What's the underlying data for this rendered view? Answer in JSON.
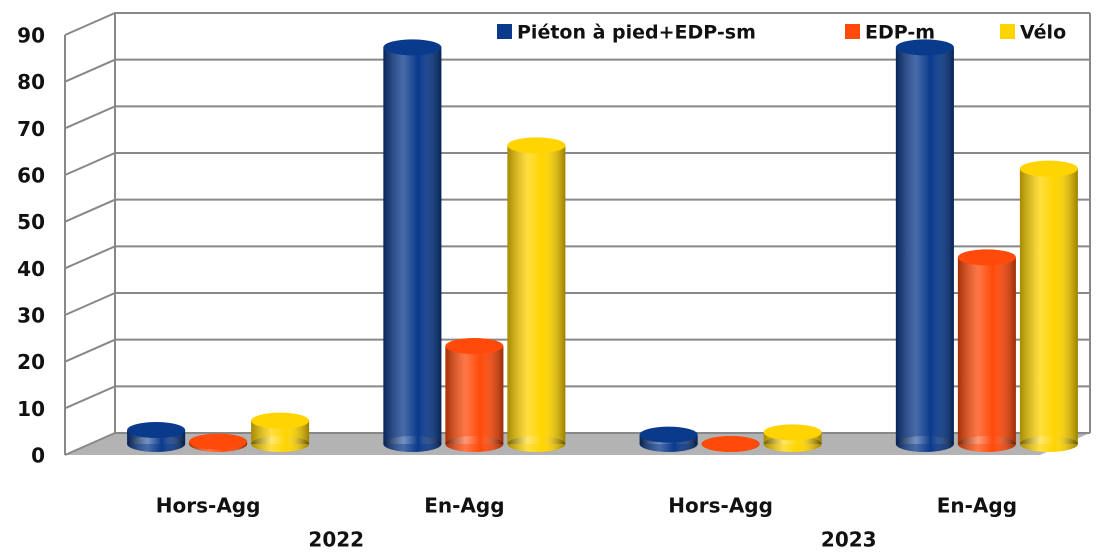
{
  "chart_data": {
    "type": "bar3d",
    "categories": [
      "Hors-Agg",
      "En-Agg",
      "Hors-Agg",
      "En-Agg"
    ],
    "groups": [
      "2022",
      "2023"
    ],
    "series": [
      {
        "name": "Piéton à pied+EDP-sm",
        "color": "#0a3a8c",
        "values": [
          3,
          85,
          2,
          85
        ]
      },
      {
        "name": "EDP-m",
        "color": "#ff4a0a",
        "values": [
          0.5,
          21,
          0,
          40
        ]
      },
      {
        "name": "Vélo",
        "color": "#ffd400",
        "values": [
          5,
          64,
          2.5,
          59
        ]
      }
    ],
    "ylim": [
      0,
      90
    ],
    "yticks": [
      0,
      10,
      20,
      30,
      40,
      50,
      60,
      70,
      80,
      90
    ],
    "grid": true,
    "legend": "top-right"
  }
}
